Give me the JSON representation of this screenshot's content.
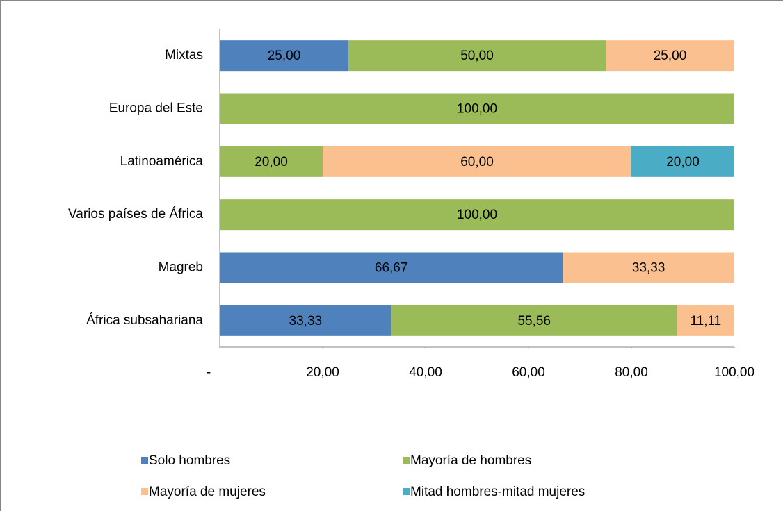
{
  "chart_data": {
    "type": "stacked-bar-horizontal",
    "categories": [
      "Mixtas",
      "Europa del Este",
      "Latinoamérica",
      "Varios países de África",
      "Magreb",
      "África subsahariana"
    ],
    "series": [
      {
        "name": "Solo hombres",
        "color": "#4f81bd",
        "values": [
          25,
          null,
          null,
          null,
          66.67,
          33.33
        ],
        "value_labels": [
          "25,00",
          null,
          null,
          null,
          "66,67",
          "33,33"
        ]
      },
      {
        "name": "Mayoría de hombres",
        "color": "#9bbb59",
        "values": [
          50,
          100,
          20,
          100,
          null,
          55.56
        ],
        "value_labels": [
          "50,00",
          "100,00",
          "20,00",
          "100,00",
          null,
          "55,56"
        ]
      },
      {
        "name": "Mayoría de mujeres",
        "color": "#fac090",
        "values": [
          25,
          null,
          60,
          null,
          33.33,
          11.11
        ],
        "value_labels": [
          "25,00",
          null,
          "60,00",
          null,
          "33,33",
          "11,11"
        ]
      },
      {
        "name": "Mitad hombres-mitad mujeres",
        "color": "#4bacc6",
        "values": [
          null,
          null,
          20,
          null,
          null,
          null
        ],
        "value_labels": [
          null,
          null,
          "20,00",
          null,
          null,
          null
        ]
      }
    ],
    "xlim": [
      0,
      100
    ],
    "xticks": [
      {
        "value": 0,
        "label": "-"
      },
      {
        "value": 20,
        "label": "20,00"
      },
      {
        "value": 40,
        "label": "40,00"
      },
      {
        "value": 60,
        "label": "60,00"
      },
      {
        "value": 80,
        "label": "80,00"
      },
      {
        "value": 100,
        "label": "100,00"
      }
    ],
    "legend": "bottom"
  }
}
